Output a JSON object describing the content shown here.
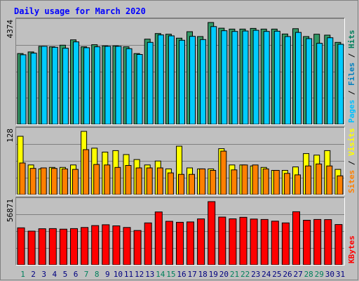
{
  "chart_data": {
    "type": "bar",
    "title": "Daily usage for March 2020",
    "categories": [
      "1",
      "2",
      "3",
      "4",
      "5",
      "6",
      "7",
      "8",
      "9",
      "10",
      "11",
      "12",
      "13",
      "14",
      "15",
      "16",
      "17",
      "18",
      "19",
      "20",
      "21",
      "22",
      "23",
      "24",
      "25",
      "26",
      "27",
      "28",
      "29",
      "30",
      "31"
    ],
    "weekend_days": [
      "1",
      "7",
      "8",
      "14",
      "15",
      "21",
      "22",
      "28",
      "29"
    ],
    "panels": [
      {
        "id": "top",
        "ymax": 4374,
        "ymax_label": "4374",
        "ylabel_parts": [
          "Pages",
          "Files",
          "Hits"
        ],
        "series": [
          {
            "name": "Hits",
            "color": "#339966",
            "values": [
              3040,
              3110,
              3350,
              3330,
              3400,
              3630,
              3330,
              3420,
              3370,
              3370,
              3330,
              3040,
              3660,
              3900,
              3870,
              3700,
              3980,
              3770,
              4374,
              4130,
              4090,
              4090,
              4120,
              4090,
              4090,
              3880,
              4110,
              3770,
              3870,
              3830,
              3520
            ]
          },
          {
            "name": "Files",
            "color": "#00ccff",
            "values": [
              2990,
              3060,
              3350,
              3310,
              3270,
              3540,
              3290,
              3330,
              3350,
              3350,
              3250,
              3000,
              3520,
              3840,
              3800,
              3610,
              3780,
              3640,
              4200,
              4020,
              3990,
              4010,
              4040,
              3990,
              4000,
              3770,
              3950,
              3680,
              3480,
              3720,
              3440
            ]
          },
          {
            "name": "Pages",
            "color": "#0080c0",
            "values": [
              0,
              0,
              0,
              0,
              0,
              0,
              0,
              0,
              0,
              0,
              0,
              0,
              0,
              0,
              0,
              0,
              0,
              0,
              0,
              0,
              0,
              0,
              0,
              0,
              0,
              0,
              0,
              0,
              0,
              0,
              0
            ]
          }
        ]
      },
      {
        "id": "middle",
        "ymax": 128,
        "ymax_label": "128",
        "ylabel_parts": [
          "Sites",
          "Visits"
        ],
        "series": [
          {
            "name": "Visits",
            "color": "#ffff00",
            "values": [
              118,
              60,
              52,
              55,
              55,
              60,
              128,
              94,
              86,
              89,
              81,
              71,
              60,
              68,
              52,
              98,
              54,
              52,
              52,
              93,
              60,
              60,
              58,
              55,
              49,
              49,
              56,
              83,
              80,
              89,
              51
            ]
          },
          {
            "name": "Sites",
            "color": "#ff8000",
            "values": [
              64,
              53,
              54,
              53,
              52,
              51,
              91,
              61,
              60,
              55,
              59,
              54,
              54,
              54,
              44,
              41,
              41,
              52,
              49,
              88,
              50,
              60,
              60,
              52,
              49,
              43,
              40,
              58,
              62,
              58,
              38
            ]
          }
        ]
      },
      {
        "id": "bottom",
        "ymax": 56871,
        "ymax_label": "56871",
        "ylabel_parts": [
          "KBytes"
        ],
        "series": [
          {
            "name": "KBytes",
            "color": "#ff0000",
            "values": [
              33300,
              30300,
              32500,
              32600,
              32100,
              32600,
              33600,
              35300,
              36100,
              35100,
              33600,
              30900,
              37700,
              47600,
              39200,
              38300,
              38600,
              41300,
              56871,
              43000,
              41400,
              42800,
              41200,
              40800,
              39300,
              37700,
              47800,
              40100,
              40800,
              40700,
              36300
            ]
          }
        ]
      }
    ],
    "colors": {
      "title": "#0000ff",
      "background": "#c0c0c0",
      "grid": "#808080",
      "frame_dark": "#808080",
      "frame_light": "#ffffff",
      "day_label": "#000080",
      "weekend_label": "#00805c"
    }
  }
}
